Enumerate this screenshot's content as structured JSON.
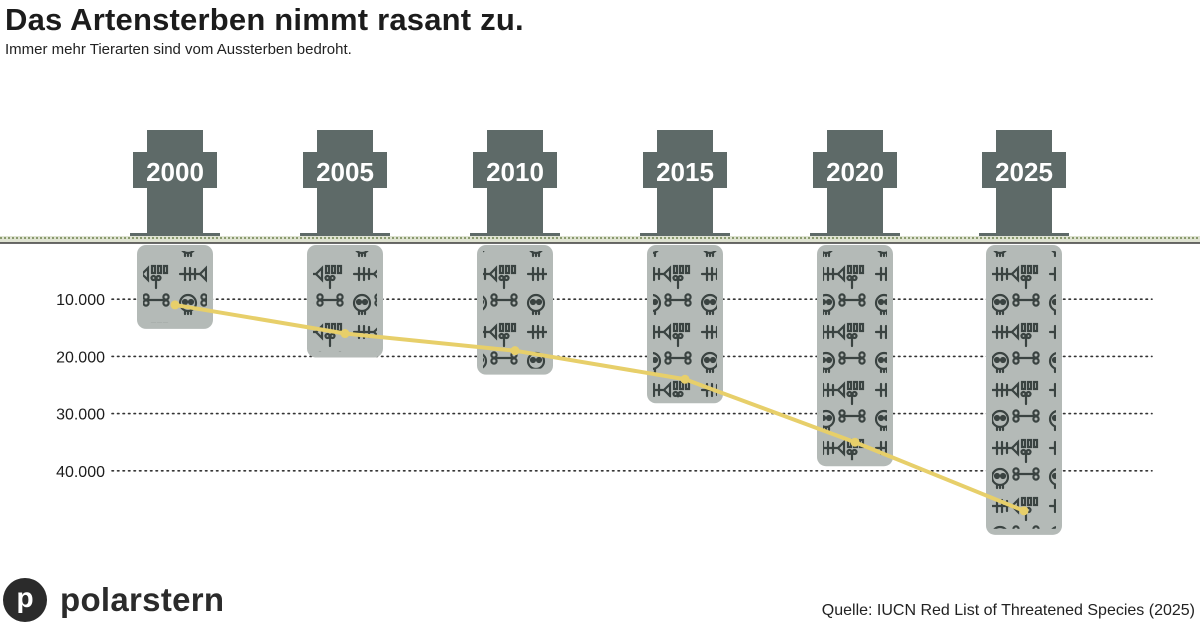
{
  "header": {
    "title": "Das Artensterben nimmt rasant zu.",
    "subtitle": "Immer mehr Tierarten sind vom Aussterben bedroht."
  },
  "branding": {
    "logo_letter": "p",
    "logo_text": "polarstern"
  },
  "source": "Quelle: IUCN Red List of Threatened Species (2025)",
  "colors": {
    "grave": "#5e6a68",
    "coffin": "#b4bab7",
    "bones": "#3a4341",
    "line": "#e7cf6a",
    "ground": "#8a9a6e"
  },
  "chart_data": {
    "type": "line",
    "categories": [
      "2000",
      "2005",
      "2010",
      "2015",
      "2020",
      "2025"
    ],
    "values": [
      11000,
      16000,
      19000,
      24000,
      35000,
      47000
    ],
    "y_ticks": [
      {
        "value": 10000,
        "label": "10.000"
      },
      {
        "value": 20000,
        "label": "20.000"
      },
      {
        "value": 30000,
        "label": "30.000"
      },
      {
        "value": 40000,
        "label": "40.000"
      }
    ],
    "ylim": [
      0,
      50000
    ],
    "y_inverted": true,
    "grid": true
  }
}
